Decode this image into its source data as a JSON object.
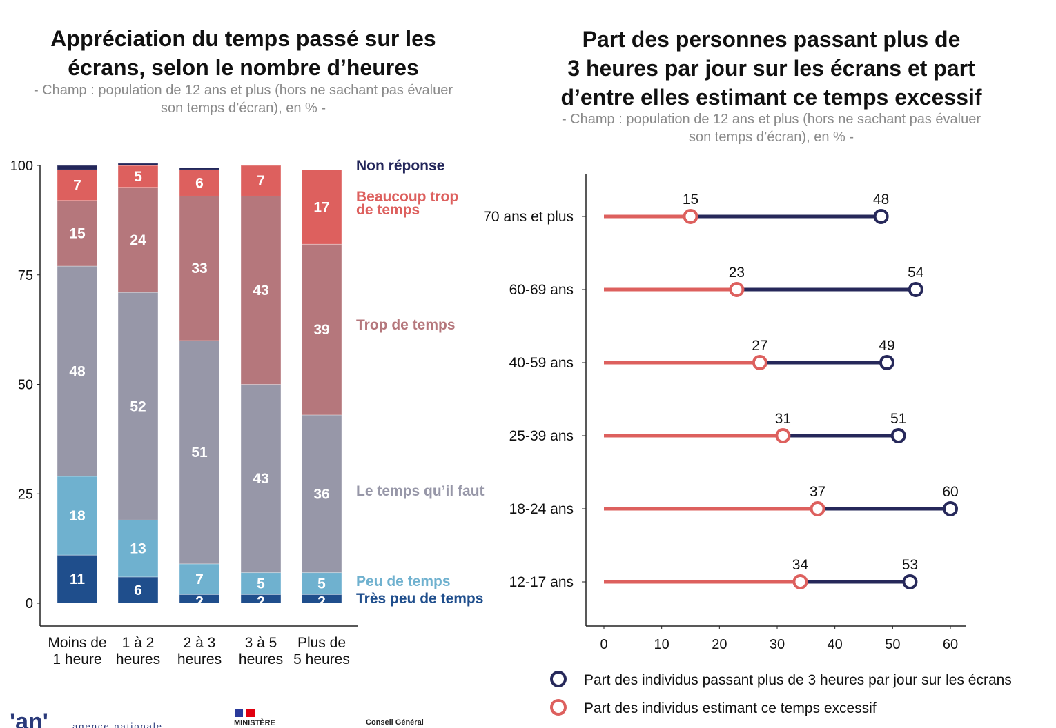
{
  "chart_data": [
    {
      "type": "bar",
      "stacked": true,
      "title": "Appréciation du temps passé sur les écrans, selon le nombre d’heures",
      "subtitle": "- Champ : population de 12 ans et plus (hors ne sachant pas évaluer son temps d’écran), en % -",
      "categories": [
        [
          "Moins de",
          "1 heure"
        ],
        [
          "1 à 2",
          "heures"
        ],
        [
          "2 à 3",
          "heures"
        ],
        [
          "3 à 5",
          "heures"
        ],
        [
          "Plus de",
          "5 heures"
        ]
      ],
      "ylim": [
        0,
        100
      ],
      "yticks": [
        0,
        25,
        50,
        75,
        100
      ],
      "legend": "right",
      "series": [
        {
          "name": "Très peu de temps",
          "color": "#1f4e8c",
          "values": [
            11,
            6,
            2,
            2,
            2
          ]
        },
        {
          "name": "Peu de temps",
          "color": "#6fb1cf",
          "values": [
            18,
            13,
            7,
            5,
            5
          ]
        },
        {
          "name": "Le temps qu’il faut",
          "color": "#9797a8",
          "values": [
            48,
            52,
            51,
            43,
            36
          ]
        },
        {
          "name": "Trop de temps",
          "color": "#b5777c",
          "values": [
            15,
            24,
            33,
            43,
            39
          ]
        },
        {
          "name": "Beaucoup trop de temps",
          "color": "#dd605e",
          "values": [
            7,
            5,
            6,
            7,
            17
          ]
        },
        {
          "name": "Non réponse",
          "color": "#23265a",
          "values": [
            1,
            0.5,
            0.5,
            0,
            0
          ]
        }
      ]
    },
    {
      "type": "dumbbell",
      "title": "Part des personnes passant plus de 3 heures par jour sur les écrans et part d’entre elles estimant ce temps excessif",
      "subtitle": "- Champ : population de 12 ans et plus (hors ne sachant pas évaluer son temps d’écran), en % -",
      "categories": [
        "70 ans et plus",
        "60-69 ans",
        "40-59 ans",
        "25-39 ans",
        "18-24 ans",
        "12-17 ans"
      ],
      "xlim": [
        0,
        60
      ],
      "xticks": [
        0,
        10,
        20,
        30,
        40,
        50,
        60
      ],
      "legend": "bottom",
      "series": [
        {
          "name": "Part des individus passant plus de 3 heures par jour sur les écrans",
          "color": "#26285a",
          "values": [
            48,
            54,
            49,
            51,
            60,
            53
          ]
        },
        {
          "name": "Part des individus estimant ce temps excessif",
          "color": "#dd605e",
          "values": [
            15,
            23,
            27,
            31,
            37,
            34
          ]
        }
      ]
    }
  ],
  "titles": {
    "left": [
      "Appréciation du temps passé sur les",
      "écrans, selon le nombre d’heures"
    ],
    "left_sub": [
      "- Champ : population de 12 ans et plus (hors ne sachant pas évaluer",
      "son temps d’écran), en % -"
    ],
    "right": [
      "Part des personnes passant plus de",
      "3 heures par jour sur les écrans et part",
      "d’entre elles estimant ce temps excessif"
    ],
    "right_sub": [
      "- Champ : population de 12 ans et plus (hors ne sachant pas évaluer",
      "son temps d’écran), en % -"
    ]
  },
  "logos": {
    "anct": "agence nationale",
    "ministere": "MINISTÈRE",
    "conseil": "Conseil Général"
  }
}
